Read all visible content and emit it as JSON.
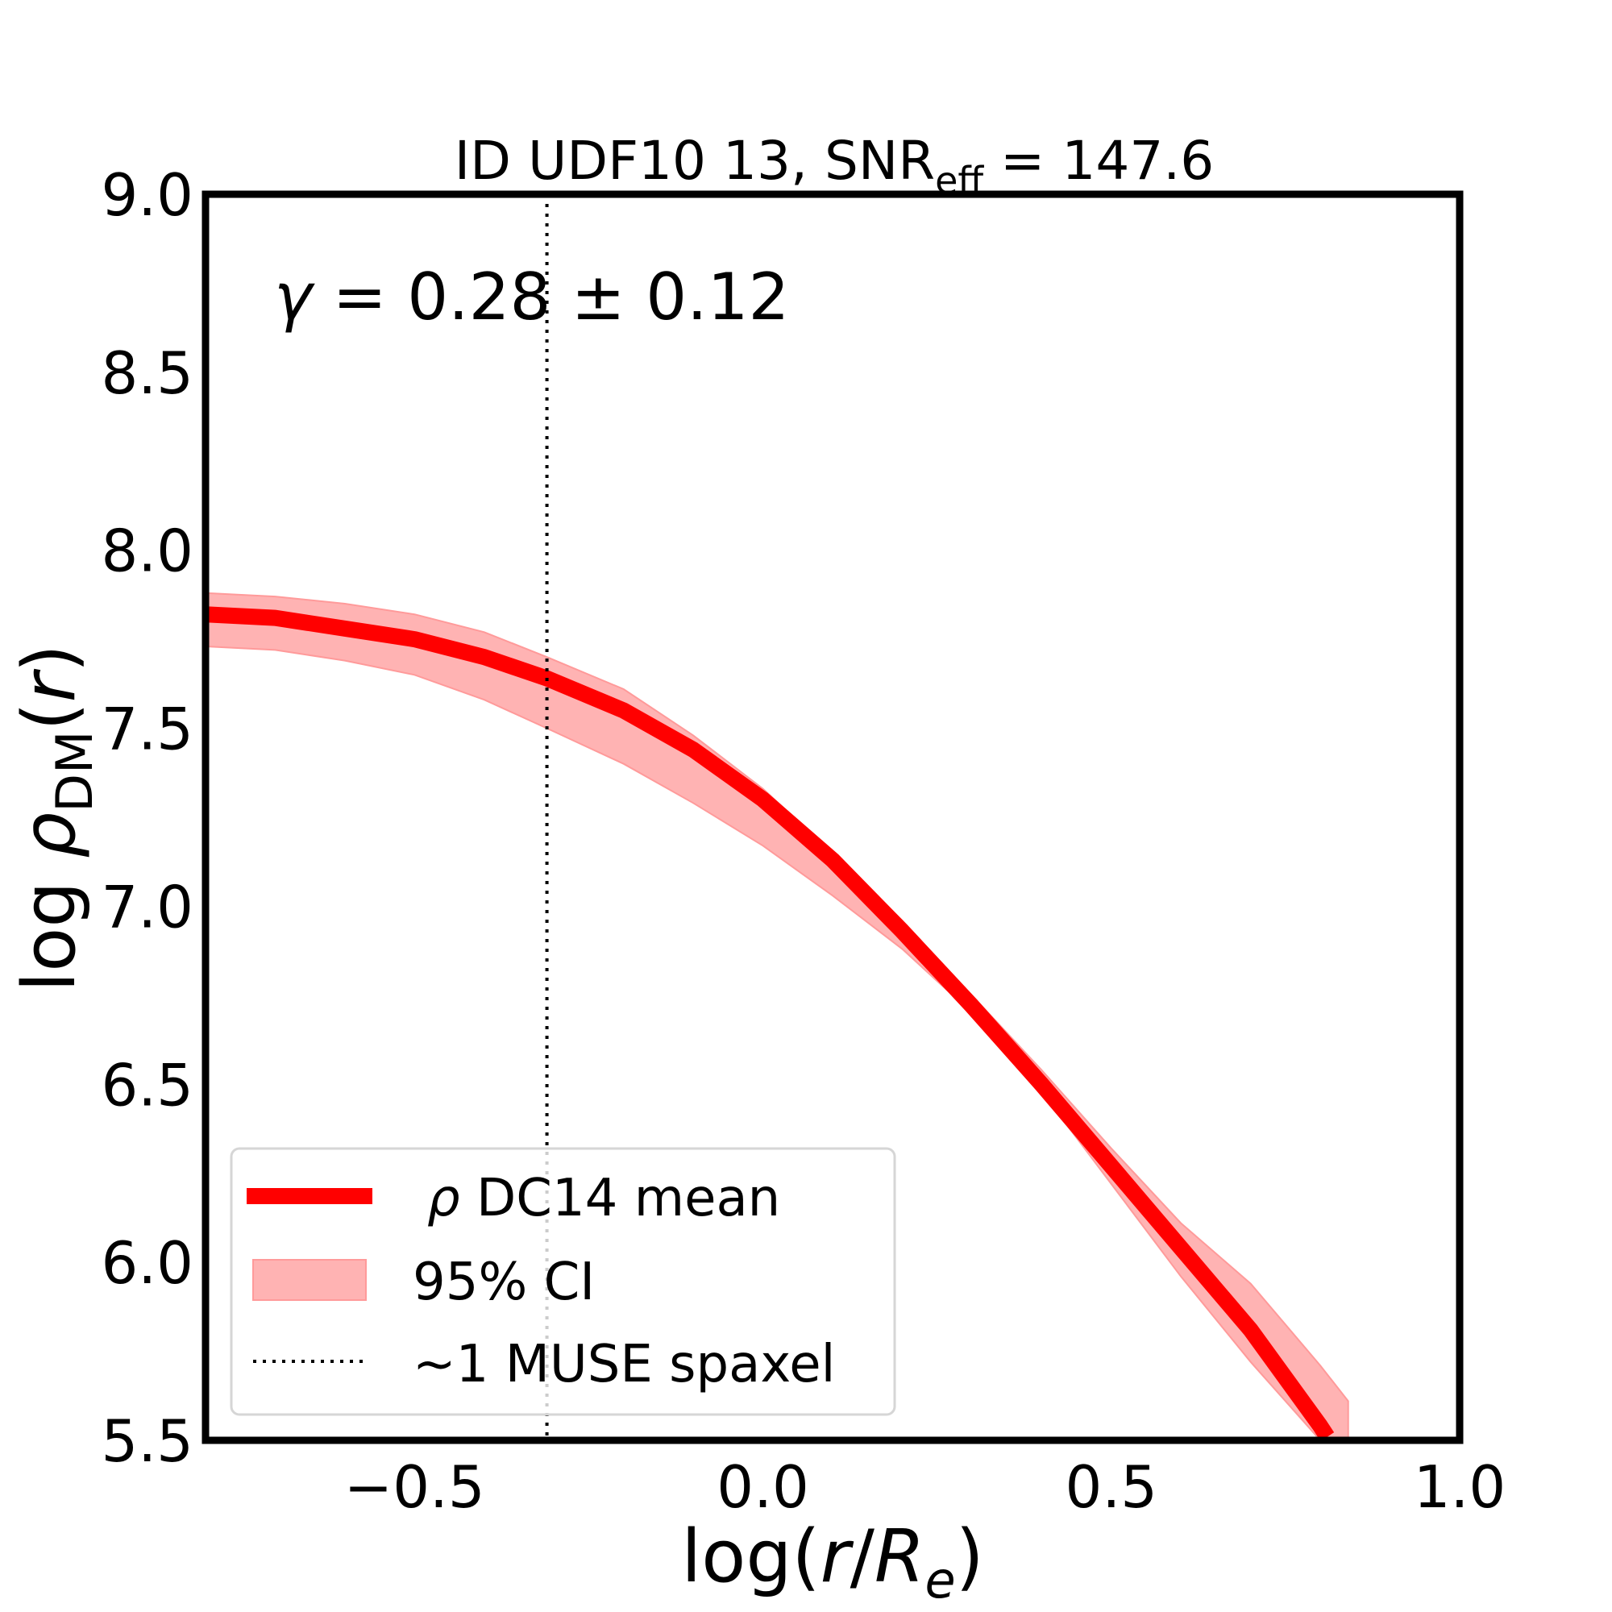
{
  "chart_data": {
    "type": "line",
    "title_prefix": "ID UDF10 13, SNR",
    "title_sub": "eff",
    "title_suffix": " = 147.6",
    "annotation": {
      "symbol": "γ",
      "text": " = 0.28 ± 0.12",
      "value": 0.28,
      "error": 0.12
    },
    "xlabel": {
      "prefix": "log(",
      "r": "r",
      "slash": "/",
      "R": "R",
      "sub": "e",
      "suffix": ")"
    },
    "ylabel": {
      "prefix": "log ",
      "rho": "ρ",
      "sub": "DM",
      "paren_open": "(",
      "r": "r",
      "paren_close": ")"
    },
    "xlim": [
      -0.8,
      1.0
    ],
    "ylim": [
      5.5,
      9.0
    ],
    "xticks": [
      -0.5,
      0.0,
      0.5,
      1.0
    ],
    "xtick_labels": [
      "−0.5",
      "0.0",
      "0.5",
      "1.0"
    ],
    "yticks": [
      5.5,
      6.0,
      6.5,
      7.0,
      7.5,
      8.0,
      8.5,
      9.0
    ],
    "ytick_labels": [
      "5.5",
      "6.0",
      "6.5",
      "7.0",
      "7.5",
      "8.0",
      "8.5",
      "9.0"
    ],
    "vline": {
      "x": -0.31,
      "label": "~1 MUSE spaxel"
    },
    "colors": {
      "mean": "#ff0000",
      "band": "#ffb3b3",
      "band_edge": "#ff9a9a",
      "frame": "#000000"
    },
    "series": [
      {
        "name": "ρ DC14 mean",
        "x": [
          -0.8,
          -0.7,
          -0.6,
          -0.5,
          -0.4,
          -0.31,
          -0.2,
          -0.1,
          0.0,
          0.1,
          0.2,
          0.3,
          0.4,
          0.5,
          0.6,
          0.7,
          0.8,
          0.81
        ],
        "y": [
          7.82,
          7.81,
          7.78,
          7.75,
          7.7,
          7.64,
          7.55,
          7.44,
          7.3,
          7.13,
          6.93,
          6.72,
          6.5,
          6.27,
          6.04,
          5.81,
          5.54,
          5.51
        ]
      }
    ],
    "band": {
      "name": "95% CI",
      "x": [
        -0.8,
        -0.7,
        -0.6,
        -0.5,
        -0.4,
        -0.31,
        -0.2,
        -0.1,
        0.0,
        0.1,
        0.2,
        0.3,
        0.4,
        0.5,
        0.6,
        0.7,
        0.8,
        0.84,
        0.84
      ],
      "upper": [
        7.88,
        7.87,
        7.85,
        7.82,
        7.77,
        7.7,
        7.61,
        7.48,
        7.33,
        7.15,
        6.96,
        6.75,
        6.54,
        6.32,
        6.11,
        5.94,
        5.71,
        5.61,
        5.58
      ],
      "lower": [
        7.73,
        7.72,
        7.69,
        7.65,
        7.58,
        7.5,
        7.4,
        7.29,
        7.17,
        7.03,
        6.88,
        6.7,
        6.48,
        6.22,
        5.96,
        5.72,
        5.5,
        5.45,
        5.45
      ]
    },
    "legend": {
      "position": "lower-left",
      "entries": [
        {
          "kind": "line",
          "rho": "ρ",
          "label": " DC14 mean"
        },
        {
          "kind": "band",
          "label": "95% CI"
        },
        {
          "kind": "dotted",
          "label": "~1 MUSE spaxel"
        }
      ]
    }
  }
}
